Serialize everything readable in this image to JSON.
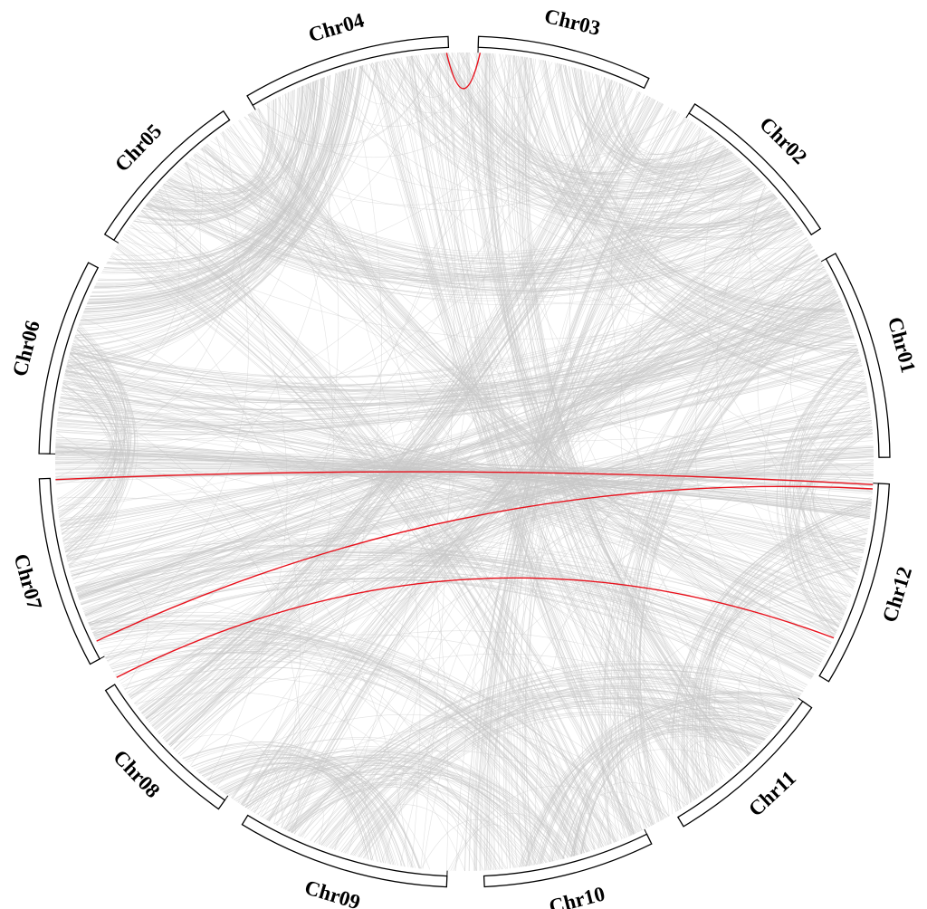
{
  "colors": {
    "background": "#ffffff",
    "link_default": "#c8c8c8",
    "link_highlight": "#e8111c",
    "ideogram_outline": "#000000",
    "ideogram_fill": "#ffffff"
  },
  "chromosomes": [
    {
      "name": "Chr01",
      "start_deg": 60.7,
      "end_deg": 89.4
    },
    {
      "name": "Chr02",
      "start_deg": 32.8,
      "end_deg": 56.8
    },
    {
      "name": "Chr03",
      "start_deg": 1.9,
      "end_deg": 25.7
    },
    {
      "name": "Chr04",
      "start_deg": -30.7,
      "end_deg": -2.2
    },
    {
      "name": "Chr05",
      "start_deg": -57.7,
      "end_deg": -34.5
    },
    {
      "name": "Chr06",
      "start_deg": -88.9,
      "end_deg": -62.1
    },
    {
      "name": "Chr07",
      "start_deg": -118.4,
      "end_deg": -92.3
    },
    {
      "name": "Chr08",
      "start_deg": -144.7,
      "end_deg": -122.5
    },
    {
      "name": "Chr09",
      "start_deg": -177.6,
      "end_deg": -148.5
    },
    {
      "name": "Chr10",
      "start_deg": 153.9,
      "end_deg": 177.3
    },
    {
      "name": "Chr11",
      "start_deg": 125.3,
      "end_deg": 149.0
    },
    {
      "name": "Chr12",
      "start_deg": 93.0,
      "end_deg": 121.1
    }
  ],
  "link_bundles": [
    {
      "a": -6,
      "b": 46,
      "n": 70,
      "w": 18
    },
    {
      "a": 18,
      "b": 42,
      "n": 40,
      "w": 10
    },
    {
      "a": -18,
      "b": -72,
      "n": 55,
      "w": 12
    },
    {
      "a": -45,
      "b": 50,
      "n": 55,
      "w": 12
    },
    {
      "a": 10,
      "b": 75,
      "n": 45,
      "w": 14
    },
    {
      "a": -80,
      "b": 65,
      "n": 60,
      "w": 14
    },
    {
      "a": -75,
      "b": -100,
      "n": 45,
      "w": 10
    },
    {
      "a": -82,
      "b": 108,
      "n": 40,
      "w": 14
    },
    {
      "a": -105,
      "b": 70,
      "n": 55,
      "w": 14
    },
    {
      "a": -110,
      "b": 120,
      "n": 40,
      "w": 12
    },
    {
      "a": -130,
      "b": 85,
      "n": 40,
      "w": 12
    },
    {
      "a": -160,
      "b": 130,
      "n": 55,
      "w": 12
    },
    {
      "a": 168,
      "b": 130,
      "n": 45,
      "w": 10
    },
    {
      "a": -150,
      "b": 170,
      "n": 45,
      "w": 12
    },
    {
      "a": 160,
      "b": -118,
      "n": 40,
      "w": 12
    },
    {
      "a": 140,
      "b": 5,
      "n": 45,
      "w": 12
    },
    {
      "a": 110,
      "b": 80,
      "n": 40,
      "w": 12
    },
    {
      "a": -25,
      "b": -50,
      "n": 40,
      "w": 8
    },
    {
      "a": -140,
      "b": -170,
      "n": 40,
      "w": 8
    },
    {
      "a": -65,
      "b": -20,
      "n": 45,
      "w": 10
    },
    {
      "a": 100,
      "b": 145,
      "n": 35,
      "w": 10
    },
    {
      "a": 25,
      "b": -130,
      "n": 40,
      "w": 10
    },
    {
      "a": 35,
      "b": 175,
      "n": 35,
      "w": 10
    },
    {
      "a": -90,
      "b": 95,
      "n": 50,
      "w": 6
    },
    {
      "a": -55,
      "b": 160,
      "n": 30,
      "w": 10
    },
    {
      "a": 55,
      "b": -150,
      "n": 35,
      "w": 10
    },
    {
      "a": -8,
      "b": 150,
      "n": 35,
      "w": 12
    },
    {
      "a": 88,
      "b": -112,
      "n": 30,
      "w": 8
    },
    {
      "a": 62,
      "b": 155,
      "n": 30,
      "w": 10
    },
    {
      "a": -35,
      "b": 115,
      "n": 30,
      "w": 10
    }
  ],
  "highlight_links": [
    {
      "a": -2.5,
      "b": 2.2
    },
    {
      "a": -92.5,
      "b": 93.2
    },
    {
      "a": -116.0,
      "b": 93.8
    },
    {
      "a": -121.8,
      "b": 115.5
    }
  ]
}
